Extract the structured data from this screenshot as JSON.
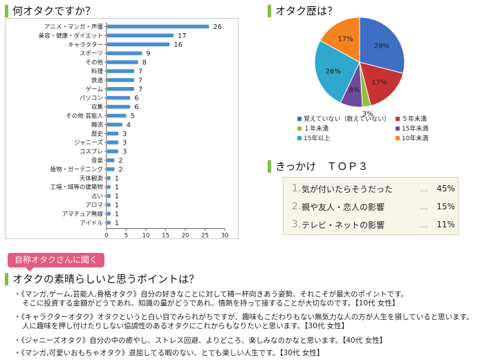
{
  "headings": {
    "q1": "何オタクですか？",
    "q2": "オタク歴は？",
    "q3": "きっかけ　ＴＯＰ３",
    "q4": "オタクの素晴らしいと思うポイントは？"
  },
  "tag_label": "自称オタクさんに聞く",
  "chart_data": [
    {
      "type": "bar",
      "orientation": "horizontal",
      "categories": [
        "アニメ・マンガ・声優",
        "美容・健康・ダイエット",
        "キャラクター",
        "スポーツ",
        "その他",
        "料理",
        "鉄道",
        "ゲーム",
        "パソコン",
        "収集",
        "その他 芸能人",
        "韓流",
        "歴史",
        "ジャニーズ",
        "コスプレ",
        "音楽",
        "植物・ガーデニング",
        "天体観測",
        "工場・城等の建築物",
        "占い",
        "アロマ",
        "アマチュア無線",
        "アイドル"
      ],
      "values": [
        26,
        17,
        16,
        9,
        8,
        7,
        7,
        7,
        6,
        6,
        5,
        4,
        3,
        3,
        3,
        2,
        2,
        1,
        1,
        1,
        1,
        1,
        1
      ],
      "data_labels": [
        "26",
        "17",
        "16",
        "9",
        "8",
        "7",
        "7",
        "7",
        "6",
        "6",
        "5",
        "4",
        "3",
        "3",
        "3",
        "2",
        "2",
        "1",
        "1",
        "1",
        "1",
        "1",
        "1"
      ],
      "xlim": [
        0,
        30
      ],
      "x_ticks": [
        "0",
        "5",
        "10",
        "15",
        "20",
        "25",
        "30"
      ],
      "grid": false,
      "bar_color": "#4a8fd0"
    },
    {
      "type": "pie",
      "labels": [
        "覚えていない（数えていない）",
        "５年未満",
        "１年未満",
        "15年未満",
        "15年以上",
        "10年未満"
      ],
      "values": [
        29,
        17,
        3,
        8,
        26,
        17
      ],
      "data_labels": [
        "29%",
        "17%",
        "3%",
        "8%",
        "26%",
        "17%"
      ],
      "colors": [
        "#3f6fc4",
        "#c93232",
        "#93c13b",
        "#6e4a9b",
        "#2ea8cc",
        "#f5821f"
      ],
      "legend_position": "bottom"
    }
  ],
  "top3": [
    {
      "rank": "1.",
      "text": "気が付いたらそうだった",
      "dots": "…",
      "pct": "45%"
    },
    {
      "rank": "2.",
      "text": "親や友人・恋人の影響",
      "dots": "…",
      "pct": "15%"
    },
    {
      "rank": "3.",
      "text": "テレビ・ネットの影響",
      "dots": "…",
      "pct": "11%"
    }
  ],
  "comments": [
    {
      "line1": "・《マンガ,ゲーム,芸能人,骨格オタク》自分の好きなことに対して精一杯向きあう姿勢、それこそが最大のポイントです。",
      "line2": "そこに投資する金額がどうであれ、知識の量がどうであれ、情熱を持って接することが大切なのです。【10代 女性】"
    },
    {
      "line1": "・《キャラクターオタク》オタクというと白い目でみられがちですが、趣味もこだわりもない無気力な人の方が人生を損していると思います。",
      "line2": "人に趣味を押し付けたりしない協調性のあるオタクにこれからもなりたいと思います。【30代 女性】"
    },
    {
      "line1": "・《ジャニーズオタク》自分の中の癒やし、ストレス回避、よりどころ、楽しみなのかなと思います。【40代 女性】",
      "line2": ""
    },
    {
      "line1": "・《マンガ,可愛いおもちゃオタク》退屈してる暇のない、とても楽しい人生です。【30代 女性】",
      "line2": ""
    }
  ]
}
